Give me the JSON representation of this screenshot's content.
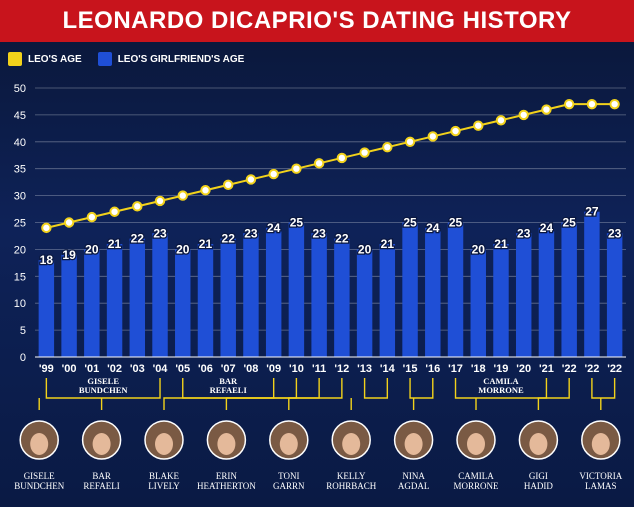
{
  "title": "LEONARDO DICAPRIO'S DATING HISTORY",
  "colors": {
    "leo": "#f2d21b",
    "girlfriend": "#1f4fd6",
    "title_bg": "#c8141c"
  },
  "legend": {
    "leo_label": "LEO'S AGE",
    "girlfriend_label": "LEO'S GIRLFRIEND'S AGE"
  },
  "chart_data": {
    "type": "bar",
    "categories": [
      "'99",
      "'00",
      "'01",
      "'02",
      "'03",
      "'04",
      "'05",
      "'06",
      "'07",
      "'08",
      "'09",
      "'10",
      "'11",
      "'12",
      "'13",
      "'14",
      "'15",
      "'16",
      "'17",
      "'18",
      "'19",
      "'20",
      "'21",
      "'22",
      "'22",
      "'22"
    ],
    "series": [
      {
        "name": "LEO'S GIRLFRIEND'S AGE",
        "type": "bar",
        "values": [
          18,
          19,
          20,
          21,
          22,
          23,
          20,
          21,
          22,
          23,
          24,
          25,
          23,
          22,
          20,
          21,
          25,
          24,
          25,
          20,
          21,
          23,
          24,
          25,
          27,
          23
        ]
      },
      {
        "name": "LEO'S AGE",
        "type": "line",
        "values": [
          24,
          25,
          26,
          27,
          28,
          29,
          30,
          31,
          32,
          33,
          34,
          35,
          36,
          37,
          38,
          39,
          40,
          41,
          42,
          43,
          44,
          45,
          46,
          47,
          47,
          47
        ]
      }
    ],
    "ylim": [
      0,
      50
    ],
    "yticks": [
      0,
      5,
      10,
      15,
      20,
      25,
      30,
      35,
      40,
      45,
      50
    ],
    "grid": true,
    "legend_position": "top-left"
  },
  "girlfriends": [
    {
      "name": "GISELE BUNDCHEN",
      "first": 0,
      "last": 5
    },
    {
      "name": "BAR REFAELI",
      "first": 6,
      "last": 10
    },
    {
      "name": "BLAKE LIVELY",
      "first": 11,
      "last": 11
    },
    {
      "name": "ERIN HEATHERTON",
      "first": 12,
      "last": 12
    },
    {
      "name": "TONI GARRN",
      "first": 13,
      "last": 13
    },
    {
      "name": "KELLY ROHRBACH",
      "first": 14,
      "last": 15
    },
    {
      "name": "NINA AGDAL",
      "first": 16,
      "last": 17
    },
    {
      "name": "CAMILA MORRONE",
      "first": 18,
      "last": 22
    },
    {
      "name": "GIGI HADID",
      "first": 23,
      "last": 23
    },
    {
      "name": "VICTORIA LAMAS",
      "first": 24,
      "last": 25
    }
  ],
  "span_labels": [
    {
      "name": "GISELE BUNDCHEN",
      "first": 0,
      "last": 5
    },
    {
      "name": "BAR REFAELI",
      "first": 6,
      "last": 10
    },
    {
      "name": "CAMILA MORRONE",
      "first": 18,
      "last": 22
    }
  ]
}
